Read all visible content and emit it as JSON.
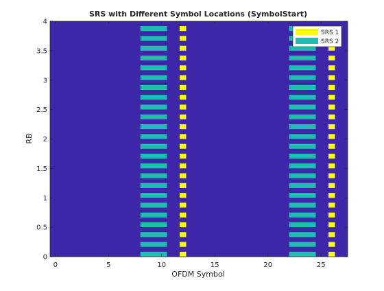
{
  "chart_data": {
    "type": "heatmap",
    "title": "SRS with Different Symbol Locations (SymbolStart)",
    "xlabel": "OFDM Symbol",
    "ylabel": "RB",
    "xlim": [
      -0.5,
      27.5
    ],
    "ylim": [
      0,
      4
    ],
    "xticks": [
      0,
      5,
      10,
      15,
      20,
      25
    ],
    "yticks": [
      0,
      0.5,
      1,
      1.5,
      2,
      2.5,
      3,
      3.5,
      4
    ],
    "xtick_labels": [
      "0",
      "5",
      "10",
      "15",
      "20",
      "25"
    ],
    "ytick_labels": [
      "0",
      "0.5",
      "1",
      "1.5",
      "2",
      "2.5",
      "3",
      "3.5",
      "4"
    ],
    "background_color": "#3e26a8",
    "legend_position": "top-right",
    "series": [
      {
        "name": "SRS 1",
        "color": "#f9fb0e",
        "symbols": [
          12,
          26
        ],
        "stripe_period_rb": 0.1667,
        "stripe_height_rb": 0.0833,
        "stripe_start_rb": 0.0
      },
      {
        "name": "SRS 2",
        "color": "#1ebfb1",
        "symbols": [
          8.5,
          9,
          9.5,
          10,
          22.5,
          23,
          23.5,
          24
        ],
        "stripe_period_rb": 0.1667,
        "stripe_height_rb": 0.0833,
        "stripe_start_rb": 0.0
      }
    ]
  }
}
